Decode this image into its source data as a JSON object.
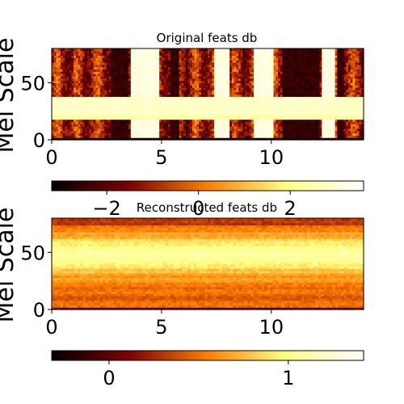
{
  "chart_data": [
    {
      "type": "heatmap",
      "title": "Original feats db",
      "ylabel": "Mel Scale",
      "xlabel": "",
      "x_ticks": [
        "0",
        "5",
        "10"
      ],
      "x_tick_values": [
        0,
        5,
        10
      ],
      "y_ticks": [
        "0",
        "50"
      ],
      "y_tick_values": [
        0,
        50
      ],
      "xlim": [
        0,
        14.2
      ],
      "ylim": [
        0,
        80
      ],
      "colormap": "afmhot",
      "colorbar": {
        "orientation": "horizontal",
        "position": "below",
        "ticks": [
          "−2",
          "0",
          "2"
        ],
        "tick_values": [
          -2,
          0,
          2
        ],
        "range": [
          -3.2,
          3.6
        ]
      },
      "bands": [
        {
          "y_range": [
            0,
            2
          ],
          "level": 0.05
        },
        {
          "y_range": [
            2,
            18
          ],
          "level": "varies-with-time"
        },
        {
          "y_range": [
            18,
            38
          ],
          "level": 0.92
        },
        {
          "y_range": [
            38,
            80
          ],
          "level": "varies-with-time"
        }
      ],
      "silent_segments_x": [
        [
          3.6,
          4.9
        ],
        [
          7.4,
          8.1
        ],
        [
          9.2,
          10.1
        ],
        [
          12.3,
          12.9
        ]
      ],
      "loud_segments_x": [
        [
          2.7,
          3.5
        ],
        [
          5.4,
          5.8
        ],
        [
          10.5,
          12.2
        ],
        [
          13.0,
          13.3
        ]
      ]
    },
    {
      "type": "heatmap",
      "title": "Reconstructed feats db",
      "ylabel": "Mel Scale",
      "xlabel": "",
      "x_ticks": [
        "0",
        "5",
        "10"
      ],
      "x_tick_values": [
        0,
        5,
        10
      ],
      "y_ticks": [
        "0",
        "50"
      ],
      "y_tick_values": [
        0,
        50
      ],
      "xlim": [
        0,
        14.2
      ],
      "ylim": [
        0,
        80
      ],
      "colormap": "afmhot",
      "colorbar": {
        "orientation": "horizontal",
        "position": "below",
        "ticks": [
          "0",
          "1"
        ],
        "tick_values": [
          0,
          1
        ],
        "range": [
          -0.32,
          1.42
        ]
      },
      "row_profile": "bright in mid bands (~35–65), darker toward bottom rows, uniform across time"
    }
  ]
}
